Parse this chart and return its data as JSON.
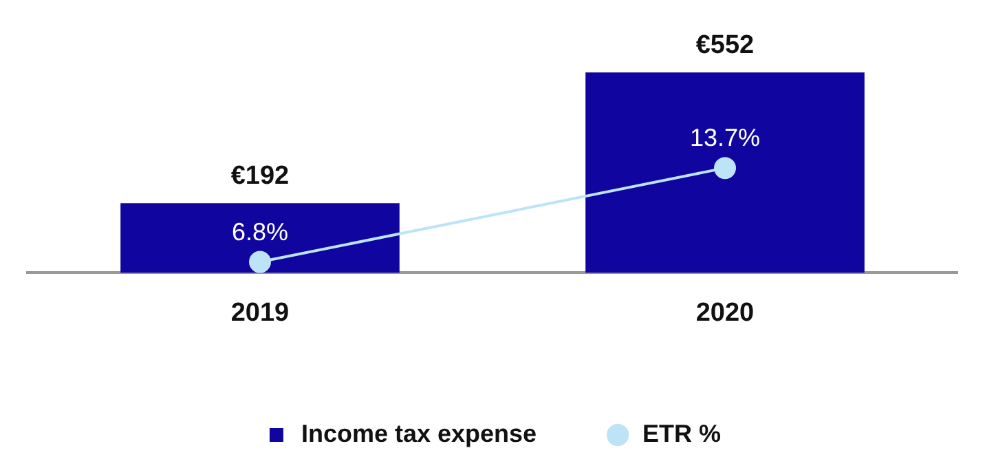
{
  "chart_data": {
    "type": "bar",
    "categories": [
      "2019",
      "2020"
    ],
    "series": [
      {
        "name": "Income tax expense",
        "color": "#10069f",
        "values": [
          192,
          552
        ],
        "value_labels": [
          "€192",
          "€552"
        ]
      },
      {
        "name": "ETR %",
        "type": "line",
        "axis": "y2",
        "color": "#bde3f7",
        "values": [
          6.8,
          13.7
        ],
        "value_labels": [
          "6.8%",
          "13.7%"
        ],
        "marker": "circle"
      }
    ],
    "grid": false,
    "legend": "bottom"
  }
}
